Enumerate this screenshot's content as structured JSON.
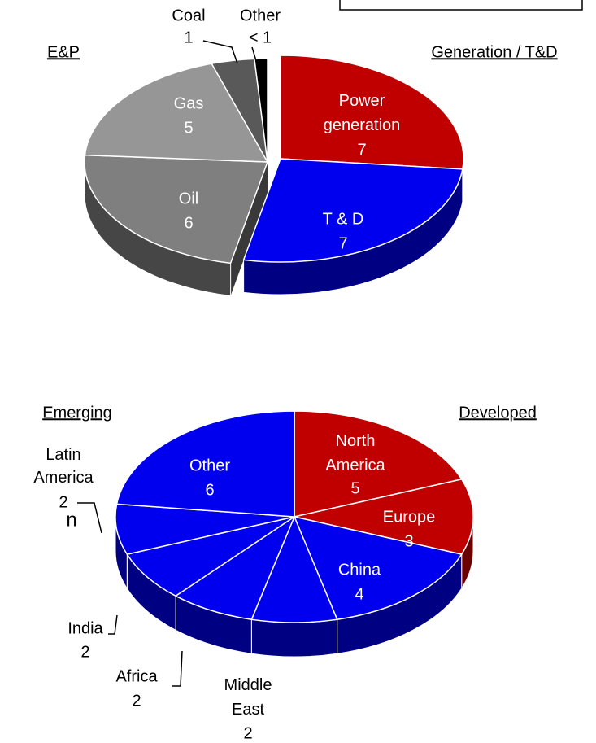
{
  "chart_data": [
    {
      "type": "pie",
      "group_labels": [
        "E&P",
        "Generation / T&D"
      ],
      "categories": [
        "Power generation",
        "T & D",
        "Oil",
        "Gas",
        "Coal",
        "Other"
      ],
      "values": [
        7,
        7,
        6,
        5,
        1,
        0.3
      ],
      "value_labels": [
        "7",
        "7",
        "6",
        "5",
        "1",
        "< 1"
      ],
      "colors": [
        "#c00000",
        "#0000ee",
        "#7f7f7f",
        "#969696",
        "#595959",
        "#000000"
      ]
    },
    {
      "type": "pie",
      "group_labels": [
        "Emerging",
        "Developed"
      ],
      "categories": [
        "North America",
        "Europe",
        "China",
        "Middle East",
        "Africa",
        "India",
        "Latin America",
        "Other"
      ],
      "values": [
        5,
        3,
        4,
        2,
        2,
        2,
        2,
        6
      ],
      "colors": [
        "#c00000",
        "#c00000",
        "#0000ee",
        "#0000ee",
        "#0000ee",
        "#0000ee",
        "#0000ee",
        "#0000ee"
      ]
    }
  ],
  "edge_text": "n"
}
